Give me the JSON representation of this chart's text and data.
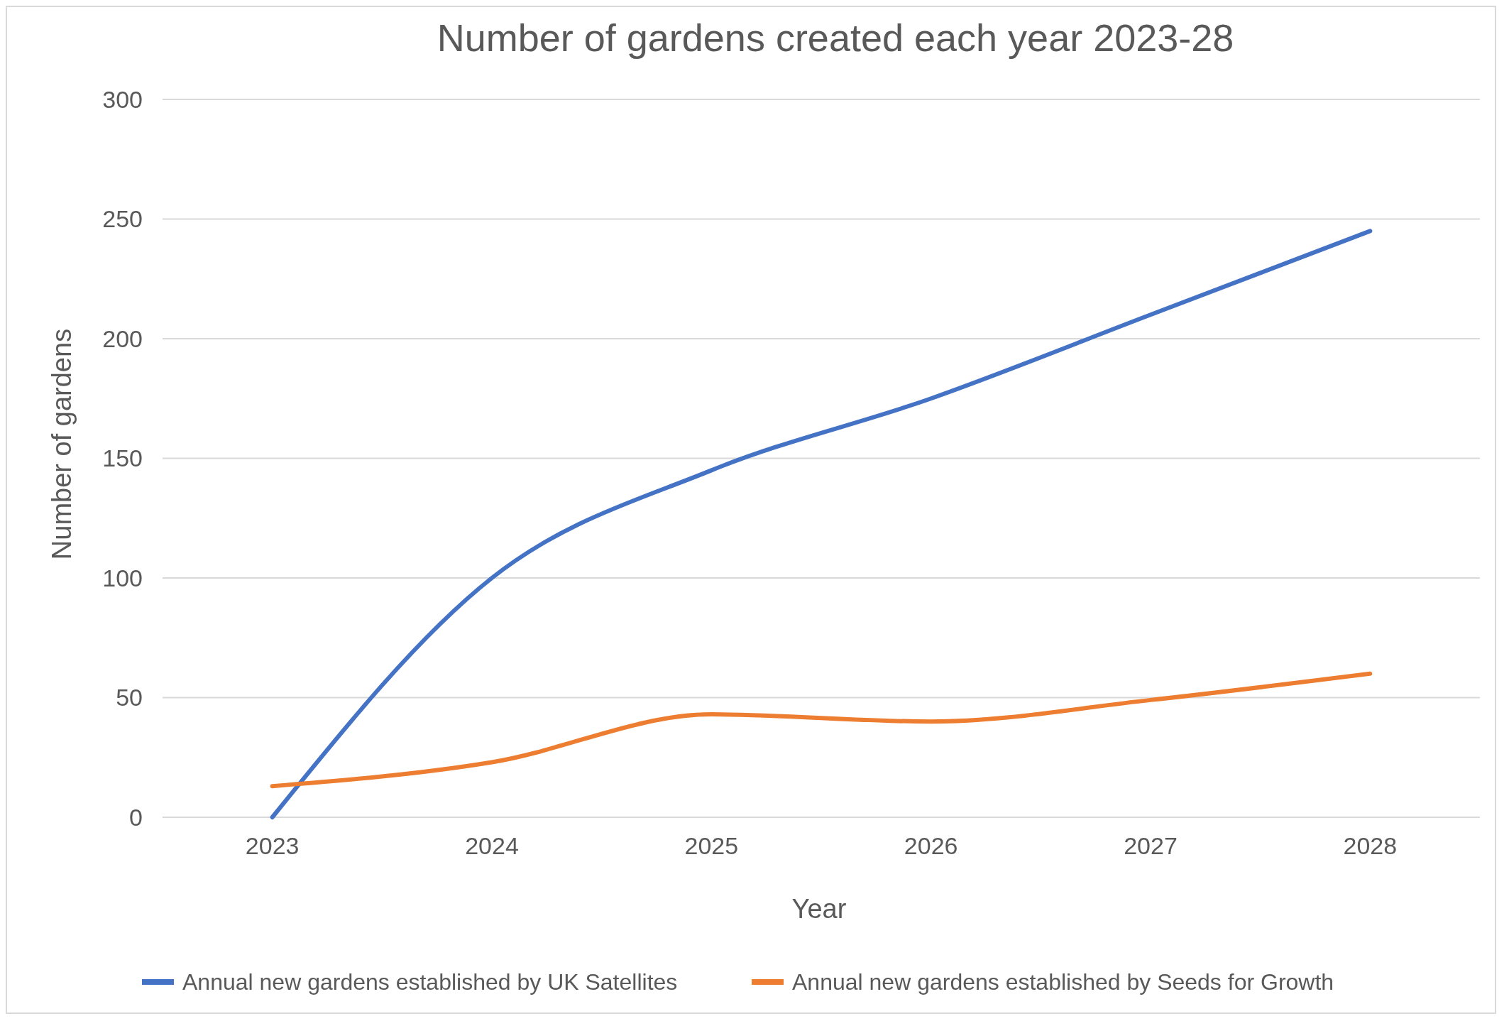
{
  "chart_data": {
    "type": "line",
    "title": "Number of gardens created each year 2023-28",
    "xlabel": "Year",
    "ylabel": "Number of gardens",
    "categories": [
      "2023",
      "2024",
      "2025",
      "2026",
      "2027",
      "2028"
    ],
    "series": [
      {
        "name": "Annual new gardens established by UK Satellites",
        "color": "#4472c4",
        "values": [
          0,
          100,
          145,
          175,
          210,
          245
        ]
      },
      {
        "name": "Annual new gardens established by Seeds for Growth",
        "color": "#ed7d31",
        "values": [
          13,
          23,
          43,
          40,
          49,
          60
        ]
      }
    ],
    "ylim": [
      0,
      300
    ],
    "yticks": [
      0,
      50,
      100,
      150,
      200,
      250,
      300
    ],
    "grid": "y",
    "legend": "bottom",
    "marker": "none",
    "line_style": "solid"
  }
}
